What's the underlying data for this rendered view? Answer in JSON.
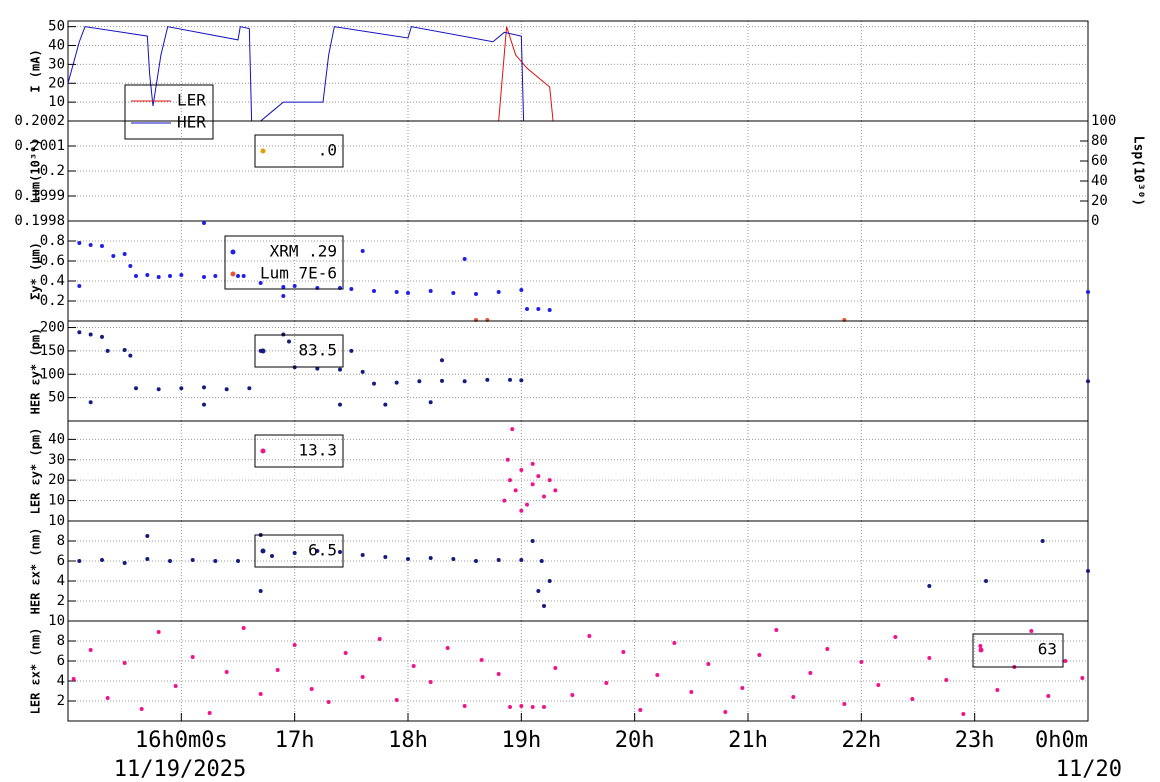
{
  "chart_data": [
    {
      "type": "line",
      "ylabel": "I (mA)",
      "xlim": [
        15,
        24
      ],
      "ylim": [
        0,
        53
      ],
      "yticks": [
        10,
        20,
        30,
        40,
        50
      ],
      "grid": true,
      "series": [
        {
          "name": "LER",
          "color": "#e01010",
          "x": [
            15.0,
            18.8,
            18.87,
            18.95,
            19.05,
            19.25,
            19.28,
            24.0
          ],
          "values": [
            0,
            0,
            50,
            35,
            28,
            18,
            0,
            0
          ]
        },
        {
          "name": "HER",
          "color": "#1010c0",
          "x": [
            15.0,
            15.1,
            15.15,
            15.7,
            15.72,
            15.75,
            15.82,
            15.88,
            16.5,
            16.52,
            16.6,
            16.62,
            16.7,
            16.8,
            16.9,
            17.25,
            17.3,
            17.35,
            18.0,
            18.03,
            18.75,
            18.85,
            19.0,
            19.02,
            24.0
          ],
          "values": [
            20,
            42,
            50,
            45,
            25,
            8,
            35,
            50,
            43,
            50,
            49,
            0,
            0,
            5,
            10,
            10,
            35,
            50,
            44,
            50,
            42,
            47,
            45,
            0,
            0
          ]
        }
      ]
    },
    {
      "type": "scatter",
      "ylabel": "Lum(10³⁰)",
      "y2label": "Lsp(10³⁰)",
      "xlim": [
        15,
        24
      ],
      "ylim": [
        0.1998,
        0.2002
      ],
      "yticks": [
        0.1998,
        0.1999,
        0.2,
        0.2001,
        0.2002
      ],
      "y2lim": [
        0,
        100
      ],
      "y2ticks": [
        0,
        20,
        40,
        60,
        80,
        100
      ],
      "grid": true,
      "series": [
        {
          "name": ".0",
          "color": "#e0a000",
          "x": [],
          "values": []
        }
      ]
    },
    {
      "type": "scatter",
      "ylabel": "Σy* (μm)",
      "xlim": [
        15,
        24
      ],
      "ylim": [
        0,
        1
      ],
      "yticks": [
        0.2,
        0.4,
        0.6,
        0.8
      ],
      "grid": true,
      "series": [
        {
          "name": "XRM  .29",
          "color": "#2020e8",
          "x": [
            15.1,
            15.2,
            15.3,
            15.4,
            15.5,
            15.55,
            15.6,
            15.7,
            15.8,
            15.9,
            16.0,
            16.2,
            16.3,
            16.5,
            16.55,
            16.7,
            16.9,
            17.0,
            17.2,
            17.4,
            17.5,
            17.7,
            17.9,
            18.0,
            18.2,
            18.4,
            18.6,
            18.8,
            19.0,
            19.05,
            19.15,
            19.25,
            24.0,
            15.1,
            16.2,
            17.6,
            18.5,
            16.9
          ],
          "values": [
            0.78,
            0.76,
            0.75,
            0.65,
            0.67,
            0.55,
            0.45,
            0.46,
            0.44,
            0.45,
            0.46,
            0.44,
            0.45,
            0.45,
            0.45,
            0.38,
            0.34,
            0.35,
            0.33,
            0.33,
            0.32,
            0.3,
            0.29,
            0.28,
            0.3,
            0.28,
            0.27,
            0.29,
            0.31,
            0.12,
            0.12,
            0.11,
            0.29,
            0.35,
            0.98,
            0.7,
            0.62,
            0.25
          ]
        },
        {
          "name": "Lum 7E-6",
          "color": "#f05030",
          "x": [
            18.6,
            18.7,
            21.85
          ],
          "values": [
            0.01,
            0.01,
            0.01
          ]
        }
      ]
    },
    {
      "type": "scatter",
      "ylabel": "HER εy* (pm)",
      "xlim": [
        15,
        24
      ],
      "ylim": [
        0,
        214
      ],
      "yticks": [
        50,
        100,
        150,
        200
      ],
      "grid": true,
      "series": [
        {
          "name": "83.5",
          "color": "#141c80",
          "x": [
            15.1,
            15.2,
            15.3,
            15.35,
            15.5,
            15.55,
            15.6,
            15.8,
            16.0,
            16.2,
            16.4,
            16.6,
            16.9,
            16.95,
            17.0,
            17.2,
            17.4,
            17.6,
            17.7,
            17.9,
            18.1,
            18.3,
            18.5,
            18.7,
            18.9,
            19.0,
            24.0,
            15.2,
            16.2,
            17.4,
            17.8,
            18.2,
            18.3,
            17.5,
            16.7
          ],
          "values": [
            190,
            185,
            180,
            150,
            152,
            140,
            70,
            68,
            70,
            72,
            68,
            70,
            185,
            170,
            115,
            112,
            110,
            105,
            80,
            82,
            85,
            86,
            85,
            88,
            88,
            87,
            85,
            40,
            35,
            35,
            35,
            40,
            130,
            150,
            150
          ]
        }
      ]
    },
    {
      "type": "scatter",
      "ylabel": "LER εy* (pm)",
      "xlim": [
        15,
        24
      ],
      "ylim": [
        0,
        49
      ],
      "yticks": [
        10,
        20,
        30,
        40
      ],
      "grid": true,
      "series": [
        {
          "name": "13.3",
          "color": "#f0148c",
          "x": [
            18.85,
            18.88,
            18.9,
            18.92,
            18.95,
            19.0,
            19.0,
            19.05,
            19.1,
            19.1,
            19.15,
            19.2,
            19.25,
            19.3
          ],
          "values": [
            10,
            30,
            20,
            45,
            15,
            25,
            5,
            8,
            18,
            28,
            22,
            12,
            20,
            15
          ]
        }
      ]
    },
    {
      "type": "scatter",
      "ylabel": "HER εx* (nm)",
      "xlim": [
        15,
        24
      ],
      "ylim": [
        0,
        10
      ],
      "yticks": [
        2,
        4,
        6,
        8,
        10
      ],
      "grid": true,
      "series": [
        {
          "name": "6.5",
          "color": "#141c80",
          "x": [
            15.1,
            15.3,
            15.5,
            15.7,
            15.9,
            16.1,
            16.3,
            16.5,
            16.8,
            17.0,
            17.2,
            17.4,
            17.6,
            17.8,
            18.0,
            18.2,
            18.4,
            18.6,
            18.8,
            19.0,
            19.1,
            19.15,
            19.18,
            19.2,
            19.25,
            22.6,
            23.1,
            23.6,
            24.0,
            15.7,
            16.7,
            16.7
          ],
          "values": [
            6,
            6.1,
            5.8,
            6.2,
            6,
            6.1,
            6,
            6,
            6.5,
            6.8,
            7,
            6.9,
            6.6,
            6.4,
            6.2,
            6.3,
            6.2,
            6,
            6.1,
            6.1,
            8,
            3,
            6,
            1.5,
            4,
            3.5,
            4,
            8,
            5,
            8.5,
            8.6,
            3
          ]
        }
      ]
    },
    {
      "type": "scatter",
      "ylabel": "LER εx* (nm)",
      "xlim": [
        15,
        24
      ],
      "ylim": [
        0,
        10
      ],
      "yticks": [
        2,
        4,
        6,
        8,
        10
      ],
      "grid": true,
      "xticks": [
        {
          "value": 16,
          "label": "16h0m0s"
        },
        {
          "value": 17,
          "label": "17h"
        },
        {
          "value": 18,
          "label": "18h"
        },
        {
          "value": 19,
          "label": "19h"
        },
        {
          "value": 20,
          "label": "20h"
        },
        {
          "value": 21,
          "label": "21h"
        },
        {
          "value": 22,
          "label": "22h"
        },
        {
          "value": 23,
          "label": "23h"
        },
        {
          "value": 24,
          "label": "0h0m"
        }
      ],
      "date_labels": [
        "11/19/2025",
        "11/20"
      ],
      "series": [
        {
          "name": "63",
          "color": "#f0148c",
          "x": [
            15.05,
            15.2,
            15.35,
            15.5,
            15.65,
            15.8,
            15.95,
            16.1,
            16.25,
            16.4,
            16.55,
            16.7,
            16.85,
            17.0,
            17.15,
            17.3,
            17.45,
            17.6,
            17.75,
            17.9,
            18.05,
            18.2,
            18.35,
            18.5,
            18.65,
            18.8,
            18.9,
            19.0,
            19.1,
            19.2,
            19.3,
            19.45,
            19.6,
            19.75,
            19.9,
            20.05,
            20.2,
            20.35,
            20.5,
            20.65,
            20.8,
            20.95,
            21.1,
            21.25,
            21.4,
            21.55,
            21.7,
            21.85,
            22.0,
            22.15,
            22.3,
            22.45,
            22.6,
            22.75,
            22.9,
            23.05,
            23.2,
            23.35,
            23.5,
            23.65,
            23.8,
            23.95
          ],
          "values": [
            4.2,
            7.1,
            2.3,
            5.8,
            1.2,
            8.9,
            3.5,
            6.4,
            0.8,
            4.9,
            9.3,
            2.7,
            5.1,
            7.6,
            3.2,
            1.9,
            6.8,
            4.4,
            8.2,
            2.1,
            5.5,
            3.9,
            7.3,
            1.5,
            6.1,
            4.7,
            1.4,
            1.5,
            1.4,
            1.4,
            5.3,
            2.6,
            8.5,
            3.8,
            6.9,
            1.1,
            4.6,
            7.8,
            2.9,
            5.7,
            0.9,
            3.3,
            6.6,
            9.1,
            2.4,
            4.8,
            7.2,
            1.7,
            5.9,
            3.6,
            8.4,
            2.2,
            6.3,
            4.1,
            0.7,
            7.5,
            3.1,
            5.4,
            9.0,
            2.5,
            6.0,
            4.3
          ]
        }
      ]
    }
  ]
}
